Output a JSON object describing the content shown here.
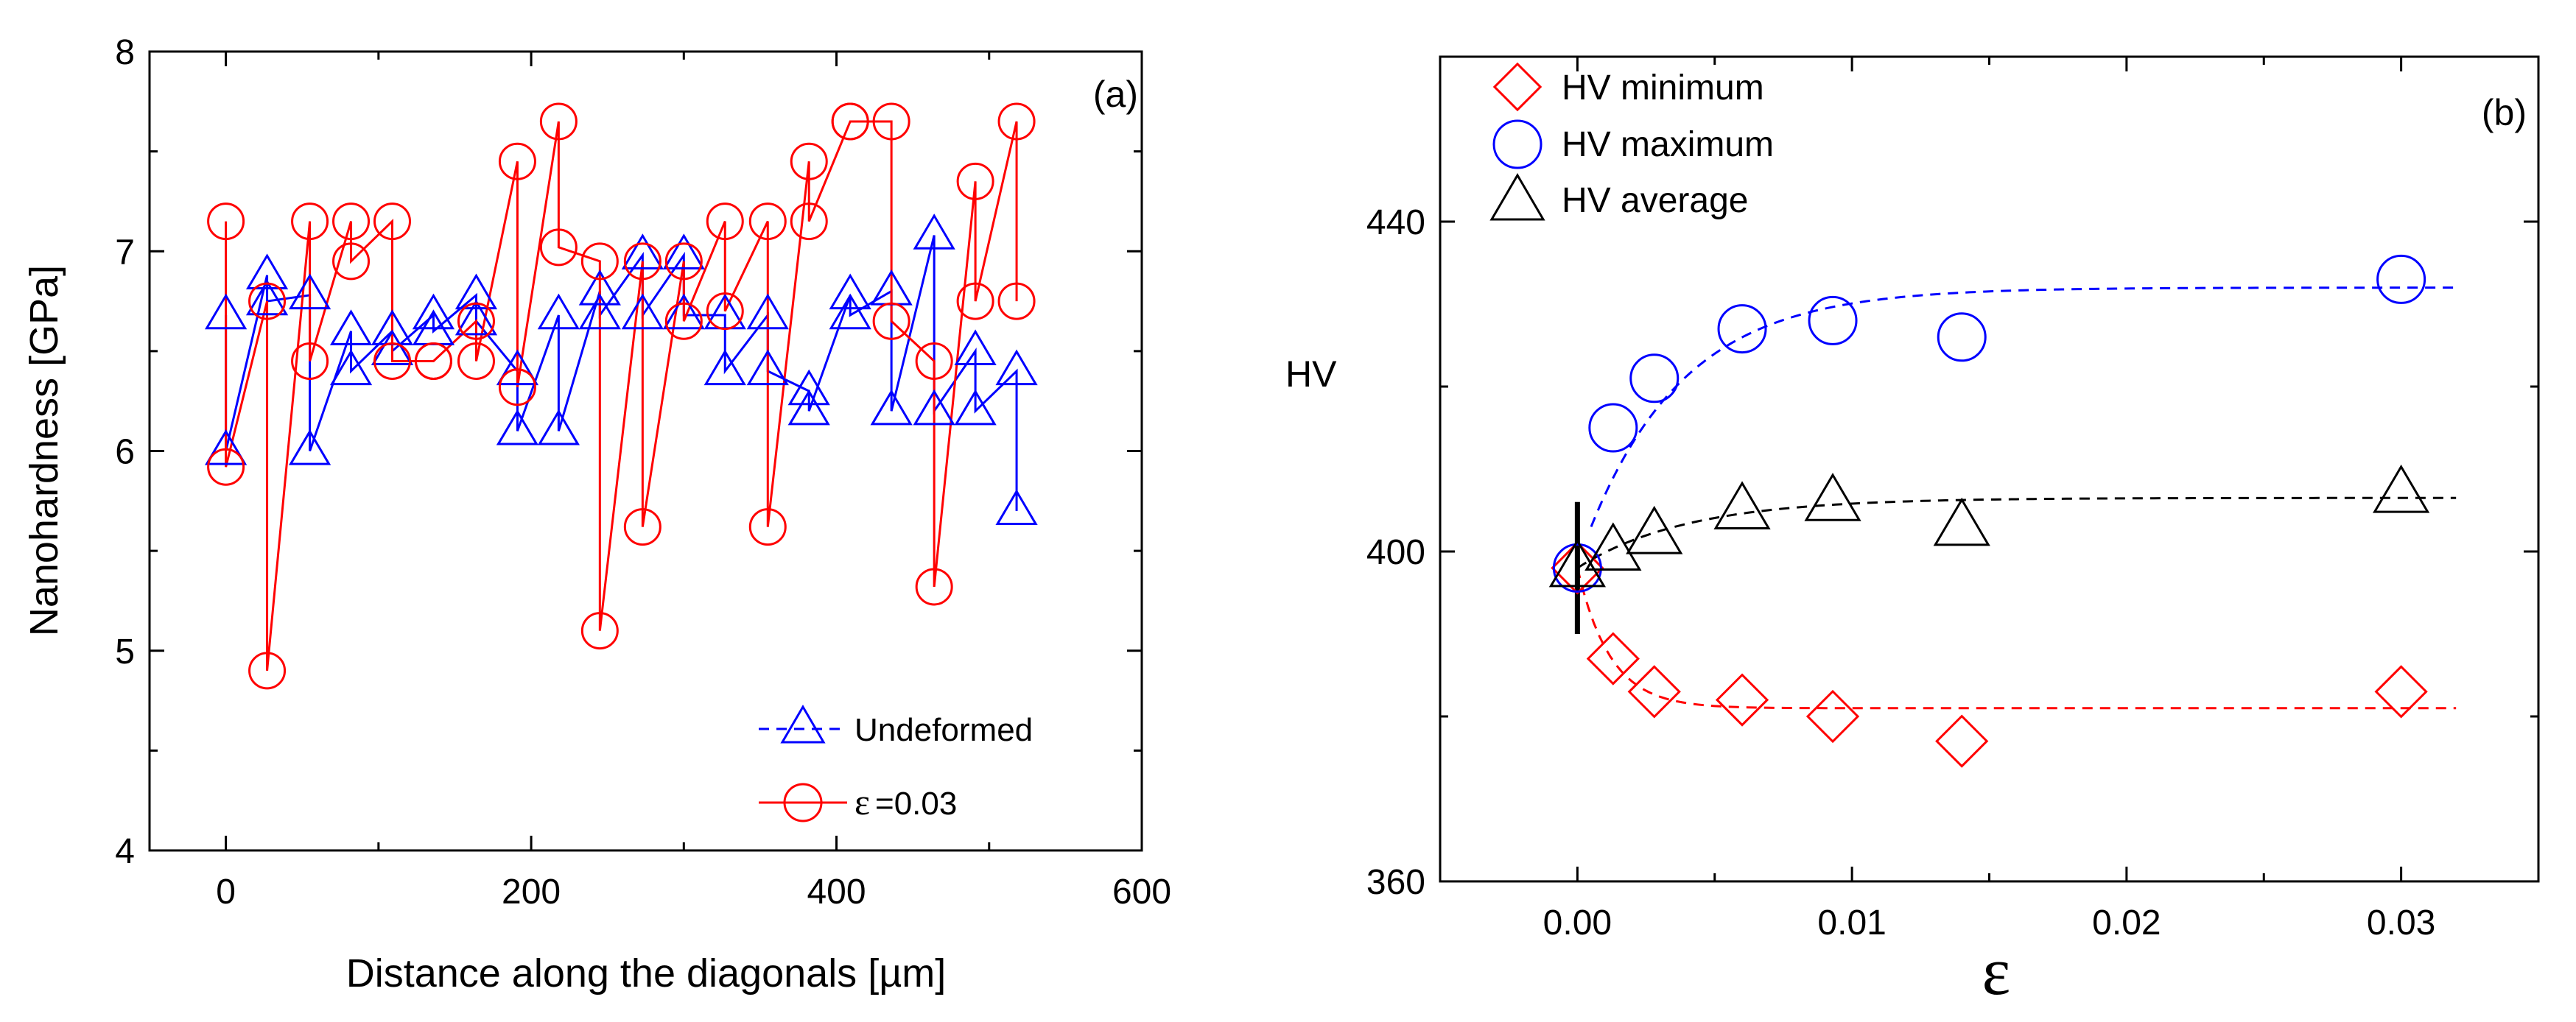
{
  "chart_data": [
    {
      "type": "line",
      "panel_label": "(a)",
      "xlabel": "Distance along the diagonals  [µm]",
      "ylabel": "Nanohardness  [GPa]",
      "xlim": [
        -50,
        600
      ],
      "ylim": [
        4,
        8
      ],
      "xticks": [
        0,
        200,
        400,
        600
      ],
      "yticks": [
        4,
        5,
        6,
        7,
        8
      ],
      "legend_position": "bottom-right",
      "series": [
        {
          "name": "Undeformed",
          "legend_label": "Undeformed",
          "color": "#0000ff",
          "marker": "triangle",
          "x": [
            0,
            0,
            27,
            27,
            55,
            55,
            82,
            82,
            109,
            109,
            136,
            136,
            164,
            164,
            191,
            191,
            218,
            218,
            245,
            245,
            273,
            273,
            300,
            300,
            327,
            327,
            355,
            355,
            382,
            382,
            409,
            409,
            436,
            436,
            464,
            464,
            491,
            491,
            518,
            518
          ],
          "y": [
            6.68,
            6.0,
            6.88,
            6.75,
            6.78,
            6.0,
            6.6,
            6.4,
            6.6,
            6.5,
            6.68,
            6.6,
            6.78,
            6.65,
            6.4,
            6.1,
            6.68,
            6.1,
            6.8,
            6.68,
            6.98,
            6.68,
            6.98,
            6.68,
            6.68,
            6.4,
            6.68,
            6.4,
            6.3,
            6.2,
            6.78,
            6.68,
            6.8,
            6.2,
            7.08,
            6.2,
            6.5,
            6.2,
            6.4,
            5.7
          ]
        },
        {
          "name": "ε=0.03",
          "legend_label": "=0.03",
          "legend_symbol": "ε",
          "color": "#ff0000",
          "marker": "circle",
          "x": [
            0,
            0,
            27,
            27,
            55,
            55,
            82,
            82,
            109,
            109,
            136,
            136,
            164,
            164,
            191,
            191,
            218,
            218,
            245,
            245,
            273,
            273,
            300,
            300,
            327,
            327,
            355,
            355,
            382,
            382,
            409,
            409,
            436,
            436,
            464,
            464,
            491,
            491,
            518,
            518
          ],
          "y": [
            7.15,
            5.92,
            6.75,
            4.9,
            7.15,
            6.45,
            7.15,
            6.95,
            7.15,
            6.45,
            6.45,
            6.45,
            6.65,
            6.45,
            7.45,
            6.32,
            7.65,
            7.02,
            6.95,
            5.1,
            6.95,
            5.62,
            6.95,
            6.65,
            7.15,
            6.7,
            7.15,
            5.62,
            7.45,
            7.15,
            7.65,
            7.65,
            7.65,
            6.65,
            6.45,
            5.32,
            7.35,
            6.75,
            7.65,
            6.75
          ]
        }
      ]
    },
    {
      "type": "scatter",
      "panel_label": "(b)",
      "xlabel": "ε",
      "ylabel": "HV",
      "xlim": [
        -0.005,
        0.035
      ],
      "ylim": [
        360,
        460
      ],
      "xticks": [
        0.0,
        0.01,
        0.02,
        0.03
      ],
      "xtick_labels": [
        "0.00",
        "0.01",
        "0.02",
        "0.03"
      ],
      "yticks": [
        360,
        400,
        440
      ],
      "legend_position": "top-left",
      "error_bar": {
        "x": 0.0,
        "y": 398,
        "low": 390,
        "high": 406
      },
      "series": [
        {
          "name": "HV minimum",
          "color": "#ff0000",
          "marker": "diamond",
          "x": [
            0.0,
            0.0013,
            0.0028,
            0.006,
            0.0093,
            0.014,
            0.03
          ],
          "y": [
            398,
            387,
            383,
            382,
            380,
            377,
            383
          ],
          "fit": {
            "from": 0.0,
            "to": 0.032,
            "start": 398,
            "plateau": 381,
            "tau": 0.0012
          }
        },
        {
          "name": "HV maximum",
          "color": "#0000ff",
          "marker": "circle",
          "x": [
            0.0,
            0.0013,
            0.0028,
            0.006,
            0.0093,
            0.014,
            0.03
          ],
          "y": [
            398,
            415,
            421,
            427,
            428,
            426,
            433
          ],
          "fit": {
            "from": 0.0005,
            "to": 0.032,
            "start": 403,
            "plateau": 432,
            "tau": 0.0035
          }
        },
        {
          "name": "HV average",
          "color": "#000000",
          "marker": "triangle",
          "x": [
            0.0,
            0.0013,
            0.0028,
            0.006,
            0.0093,
            0.014,
            0.03
          ],
          "y": [
            398,
            400,
            402,
            405,
            406,
            403,
            407
          ],
          "fit": {
            "from": 0.0,
            "to": 0.032,
            "start": 398,
            "plateau": 406.5,
            "tau": 0.004
          }
        }
      ]
    }
  ]
}
